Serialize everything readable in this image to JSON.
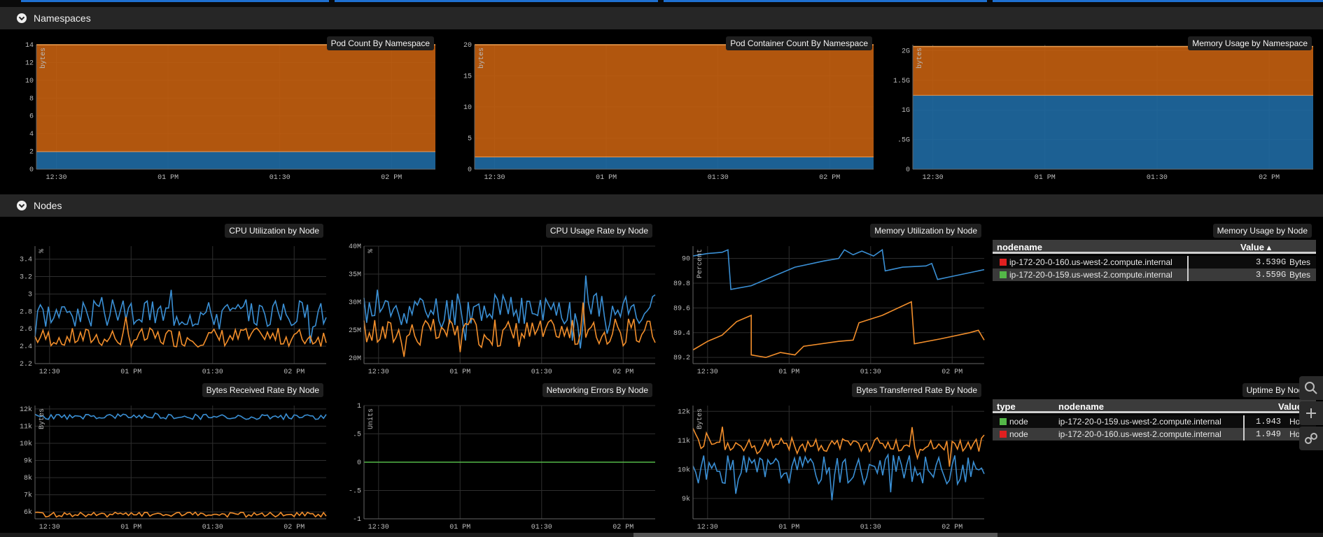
{
  "rows": [
    {
      "title": "Namespaces"
    },
    {
      "title": "Nodes"
    }
  ],
  "colors": {
    "blue": "#3a8fd4",
    "orange": "#f28e2b",
    "green": "#54b848",
    "red": "#e02020",
    "areaOrange": "#c45f0f",
    "areaBlue": "#1f6aa3"
  },
  "panels": {
    "pod_count": {
      "title": "Pod Count By Namespace"
    },
    "pod_container": {
      "title": "Pod Container Count By Namespace"
    },
    "mem_ns": {
      "title": "Memory Usage by Namespace"
    },
    "cpu_util": {
      "title": "CPU Utilization by Node"
    },
    "cpu_rate": {
      "title": "CPU Usage Rate by Node"
    },
    "mem_util": {
      "title": "Memory Utilization by Node"
    },
    "mem_usage": {
      "title": "Memory Usage by Node"
    },
    "rx": {
      "title": "Bytes Received Rate By Node"
    },
    "neterr": {
      "title": "Networking Errors By Node"
    },
    "tx": {
      "title": "Bytes Transferred Rate By Node"
    },
    "uptime": {
      "title": "Uptime By Node"
    }
  },
  "mem_table": {
    "headers": {
      "nodename": "nodename",
      "value": "Value ▴"
    },
    "rows": [
      {
        "nodename": "ip-172-20-0-160.us-west-2.compute.internal",
        "value": "3.539G",
        "unit": "Bytes",
        "color": "#e02020"
      },
      {
        "nodename": "ip-172-20-0-159.us-west-2.compute.internal",
        "value": "3.559G",
        "unit": "Bytes",
        "color": "#54b848"
      }
    ]
  },
  "uptime_table": {
    "headers": {
      "type": "type",
      "nodename": "nodename",
      "value": "Value ▴"
    },
    "rows": [
      {
        "type": "node",
        "nodename": "ip-172-20-0-159.us-west-2.compute.internal",
        "value": "1.943",
        "unit": "Hours",
        "color": "#54b848"
      },
      {
        "type": "node",
        "nodename": "ip-172-20-0-160.us-west-2.compute.internal",
        "value": "1.949",
        "unit": "Hours",
        "color": "#e02020"
      }
    ]
  },
  "chart_data": [
    {
      "id": "pod_count",
      "type": "area",
      "ylabel": "bytes",
      "xticks": [
        "12:30",
        "01 PM",
        "01:30",
        "02 PM"
      ],
      "yticks": [
        "0",
        "2",
        "4",
        "6",
        "8",
        "10",
        "12",
        "14"
      ],
      "ylim": [
        0,
        14
      ],
      "stacked": true,
      "series": [
        {
          "color": "#1f6aa3",
          "values": [
            2,
            2
          ]
        },
        {
          "color": "#c45f0f",
          "values": [
            12,
            12
          ]
        }
      ]
    },
    {
      "id": "pod_container",
      "type": "area",
      "ylabel": "bytes",
      "xticks": [
        "12:30",
        "01 PM",
        "01:30",
        "02 PM"
      ],
      "yticks": [
        "0",
        "5",
        "10",
        "15",
        "20"
      ],
      "ylim": [
        0,
        20
      ],
      "stacked": true,
      "series": [
        {
          "color": "#1f6aa3",
          "values": [
            2,
            2
          ]
        },
        {
          "color": "#c45f0f",
          "values": [
            18,
            18
          ]
        }
      ]
    },
    {
      "id": "mem_ns",
      "type": "area",
      "ylabel": "bytes",
      "xticks": [
        "12:30",
        "01 PM",
        "01:30",
        "02 PM"
      ],
      "yticks": [
        "0",
        ".5G",
        "1G",
        "1.5G",
        "2G"
      ],
      "ylim": [
        0,
        2.1
      ],
      "stacked": true,
      "series": [
        {
          "color": "#1f6aa3",
          "values": [
            1.25,
            1.25
          ]
        },
        {
          "color": "#c45f0f",
          "values": [
            0.82,
            0.82
          ]
        }
      ]
    },
    {
      "id": "cpu_util",
      "type": "line",
      "ylabel": "%",
      "xticks": [
        "12:30",
        "01 PM",
        "01:30",
        "02 PM"
      ],
      "yticks": [
        "2.2",
        "2.4",
        "2.6",
        "2.8",
        "3",
        "3.2",
        "3.4"
      ],
      "ylim": [
        2.2,
        3.55
      ],
      "series": [
        {
          "color": "#3a8fd4",
          "base": 2.78,
          "amp": 0.16,
          "spikes": 0.28,
          "seed": 3
        },
        {
          "color": "#f28e2b",
          "base": 2.5,
          "amp": 0.11,
          "spikes": 0.18,
          "seed": 7
        }
      ]
    },
    {
      "id": "cpu_rate",
      "type": "line",
      "ylabel": "%",
      "xticks": [
        "12:30",
        "01 PM",
        "01:30",
        "02 PM"
      ],
      "yticks": [
        "20M",
        "25M",
        "30M",
        "35M",
        "40M"
      ],
      "ylim": [
        19,
        40
      ],
      "series": [
        {
          "color": "#3a8fd4",
          "base": 28.5,
          "amp": 2.8,
          "spikes": 6,
          "seed": 11
        },
        {
          "color": "#f28e2b",
          "base": 24.5,
          "amp": 2.6,
          "spikes": 3,
          "seed": 17
        }
      ]
    },
    {
      "id": "mem_util",
      "type": "line",
      "ylabel": "Percent",
      "xticks": [
        "12:30",
        "01 PM",
        "01:30",
        "02 PM"
      ],
      "yticks": [
        "89.2",
        "89.4",
        "89.6",
        "89.8",
        "90"
      ],
      "ylim": [
        89.15,
        90.1
      ],
      "series": [
        {
          "color": "#3a8fd4",
          "points": [
            [
              0,
              90.02
            ],
            [
              0.05,
              90.04
            ],
            [
              0.1,
              90.05
            ],
            [
              0.12,
              90.07
            ],
            [
              0.13,
              89.75
            ],
            [
              0.2,
              89.78
            ],
            [
              0.28,
              89.86
            ],
            [
              0.35,
              89.93
            ],
            [
              0.45,
              89.98
            ],
            [
              0.5,
              90.0
            ],
            [
              0.52,
              90.07
            ],
            [
              0.55,
              90.03
            ],
            [
              0.57,
              90.05
            ],
            [
              0.58,
              90.06
            ],
            [
              0.62,
              90.02
            ],
            [
              0.65,
              90.07
            ],
            [
              0.66,
              89.9
            ],
            [
              0.72,
              89.93
            ],
            [
              0.8,
              89.94
            ],
            [
              0.82,
              89.96
            ],
            [
              0.84,
              89.83
            ],
            [
              0.9,
              89.86
            ],
            [
              0.96,
              89.89
            ],
            [
              1,
              89.91
            ]
          ]
        },
        {
          "color": "#f28e2b",
          "points": [
            [
              0,
              89.26
            ],
            [
              0.05,
              89.33
            ],
            [
              0.1,
              89.38
            ],
            [
              0.15,
              89.49
            ],
            [
              0.2,
              89.54
            ],
            [
              0.2,
              89.22
            ],
            [
              0.25,
              89.2
            ],
            [
              0.3,
              89.24
            ],
            [
              0.35,
              89.22
            ],
            [
              0.38,
              89.29
            ],
            [
              0.5,
              89.33
            ],
            [
              0.55,
              89.34
            ],
            [
              0.57,
              89.48
            ],
            [
              0.65,
              89.54
            ],
            [
              0.75,
              89.65
            ],
            [
              0.76,
              89.31
            ],
            [
              0.85,
              89.35
            ],
            [
              0.95,
              89.4
            ],
            [
              0.98,
              89.42
            ],
            [
              1,
              89.34
            ]
          ]
        }
      ]
    },
    {
      "id": "rx",
      "type": "line",
      "ylabel": "Bytes",
      "xticks": [
        "12:30",
        "01 PM",
        "01:30",
        "02 PM"
      ],
      "yticks": [
        "6k",
        "7k",
        "8k",
        "9k",
        "10k",
        "11k",
        "12k"
      ],
      "ylim": [
        5.6,
        12.2
      ],
      "series": [
        {
          "color": "#3a8fd4",
          "base": 11.55,
          "amp": 0.16,
          "spikes": 0.1,
          "seed": 23
        },
        {
          "color": "#f28e2b",
          "base": 5.85,
          "amp": 0.14,
          "spikes": 0.1,
          "seed": 29
        }
      ]
    },
    {
      "id": "neterr",
      "type": "line",
      "ylabel": "Units",
      "xticks": [
        "12:30",
        "01 PM",
        "01:30",
        "02 PM"
      ],
      "yticks": [
        "-1",
        "-.5",
        "0",
        ".5",
        "1"
      ],
      "ylim": [
        -1,
        1
      ],
      "series": [
        {
          "color": "#54b848",
          "points": [
            [
              0,
              0
            ],
            [
              1,
              0
            ]
          ]
        }
      ]
    },
    {
      "id": "tx",
      "type": "line",
      "ylabel": "Bytes",
      "xticks": [
        "12:30",
        "01 PM",
        "01:30",
        "02 PM"
      ],
      "yticks": [
        "9k",
        "10k",
        "11k",
        "12k"
      ],
      "ylim": [
        8.3,
        12.2
      ],
      "series": [
        {
          "color": "#3a8fd4",
          "base": 10.0,
          "amp": 0.5,
          "spikes": 0.9,
          "seed": 31
        },
        {
          "color": "#f28e2b",
          "base": 10.85,
          "amp": 0.25,
          "spikes": 0.6,
          "seed": 37
        }
      ]
    }
  ]
}
